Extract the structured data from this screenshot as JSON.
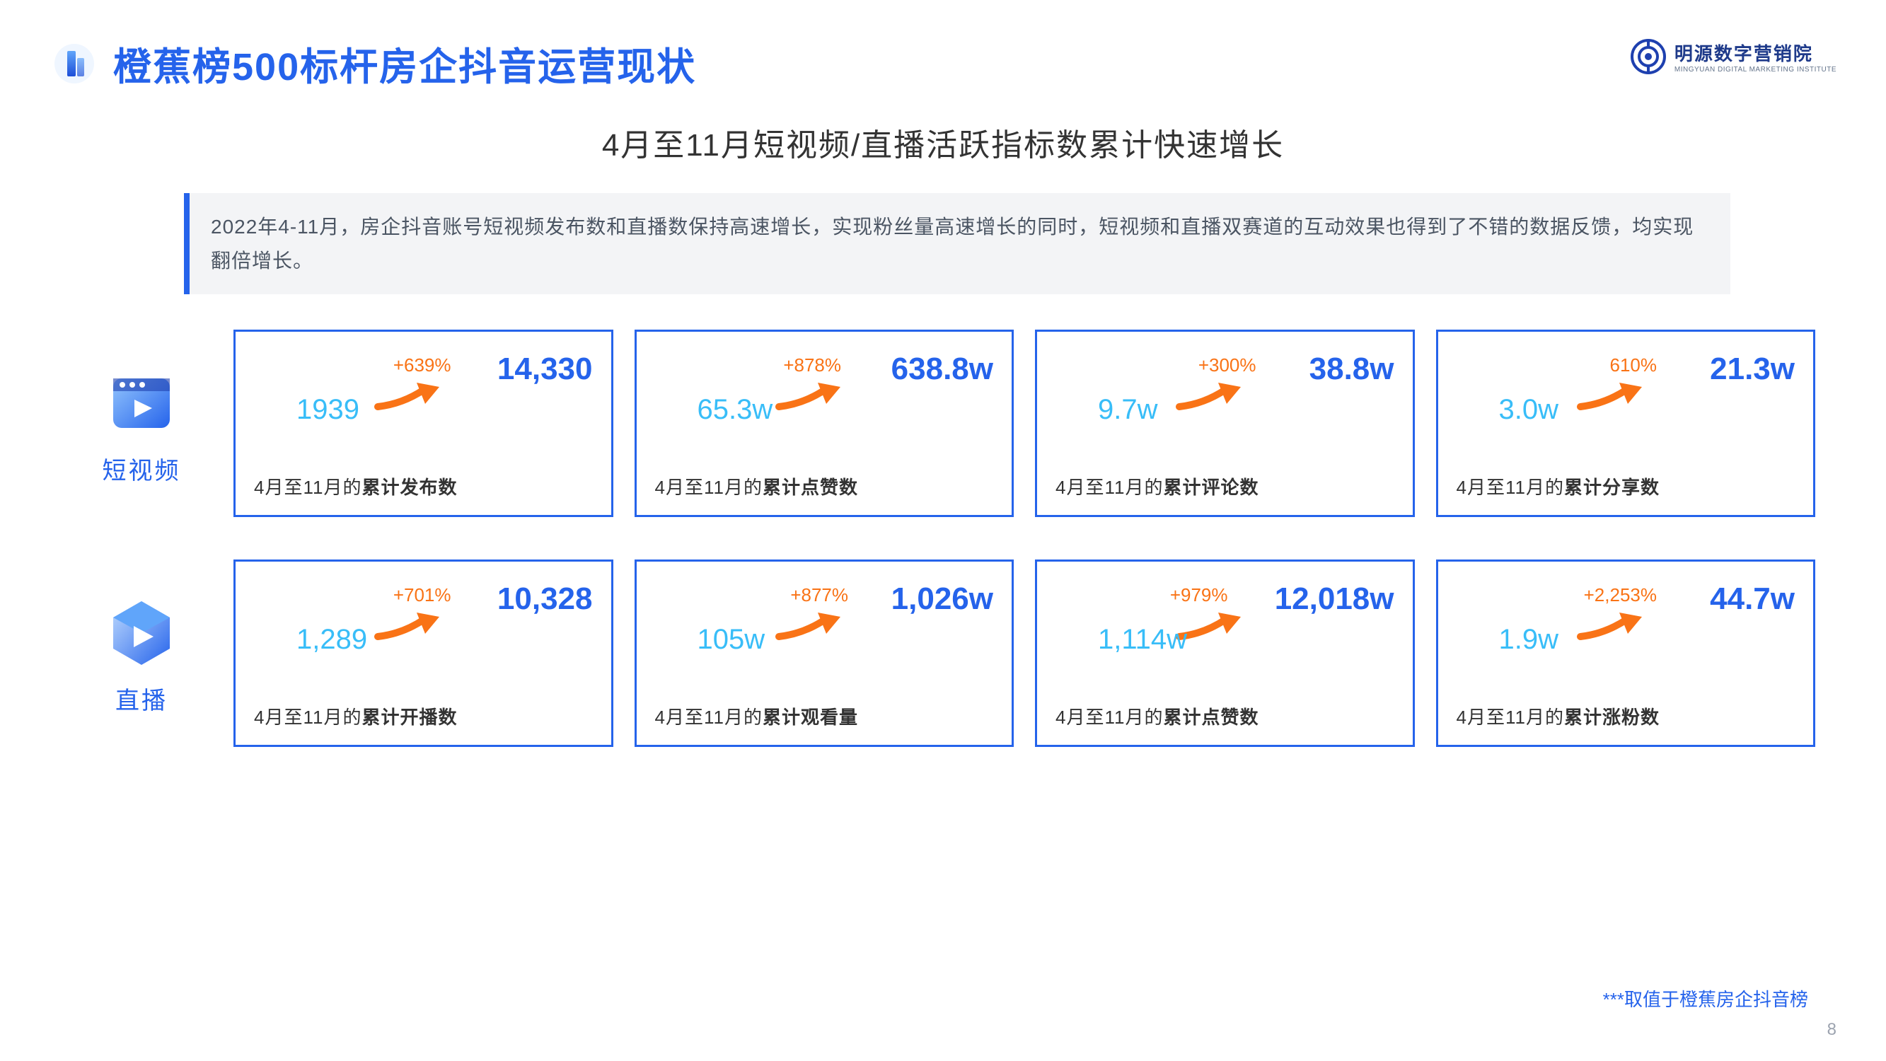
{
  "header": {
    "title": "橙蕉榜500标杆房企抖音运营现状",
    "logo_main": "明源数字营销院",
    "logo_sub": "MINGYUAN DIGITAL MARKETING INSTITUTE"
  },
  "subtitle": "4月至11月短视频/直播活跃指标数累计快速增长",
  "description": "2022年4-11月，房企抖音账号短视频发布数和直播数保持高速增长，实现粉丝量高速增长的同时，短视频和直播双赛道的互动效果也得到了不错的数据反馈，均实现翻倍增长。",
  "rows": [
    {
      "label": "短视频",
      "icon": "video-file-icon",
      "cards": [
        {
          "pct": "+639%",
          "end": "14,330",
          "start": "1939",
          "caption_prefix": "4月至11月的",
          "caption_bold": "累计发布数",
          "pct_right": 200
        },
        {
          "pct": "+878%",
          "end": "638.8w",
          "start": "65.3w",
          "caption_prefix": "4月至11月的",
          "caption_bold": "累计点赞数",
          "pct_right": 215
        },
        {
          "pct": "+300%",
          "end": "38.8w",
          "start": "9.7w",
          "caption_prefix": "4月至11月的",
          "caption_bold": "累计评论数",
          "pct_right": 195
        },
        {
          "pct": "610%",
          "end": "21.3w",
          "start": "3.0w",
          "caption_prefix": "4月至11月的",
          "caption_bold": "累计分享数",
          "pct_right": 195
        }
      ]
    },
    {
      "label": "直播",
      "icon": "live-cube-icon",
      "cards": [
        {
          "pct": "+701%",
          "end": "10,328",
          "start": "1,289",
          "caption_prefix": "4月至11月的",
          "caption_bold": "累计开播数",
          "pct_right": 200
        },
        {
          "pct": "+877%",
          "end": "1,026w",
          "start": "105w",
          "caption_prefix": "4月至11月的",
          "caption_bold": "累计观看量",
          "pct_right": 205
        },
        {
          "pct": "+979%",
          "end": "12,018w",
          "start": "1,114w",
          "caption_prefix": "4月至11月的",
          "caption_bold": "累计点赞数",
          "pct_right": 235
        },
        {
          "pct": "+2,253%",
          "end": "44.7w",
          "start": "1.9w",
          "caption_prefix": "4月至11月的",
          "caption_bold": "累计涨粉数",
          "pct_right": 195
        }
      ]
    }
  ],
  "footnote": "***取值于橙蕉房企抖音榜",
  "page_num": "8",
  "colors": {
    "brand_blue": "#2563eb",
    "light_blue": "#38bdf8",
    "orange": "#f97316",
    "bg_gray": "#f3f4f6",
    "text_gray": "#4b5563"
  }
}
